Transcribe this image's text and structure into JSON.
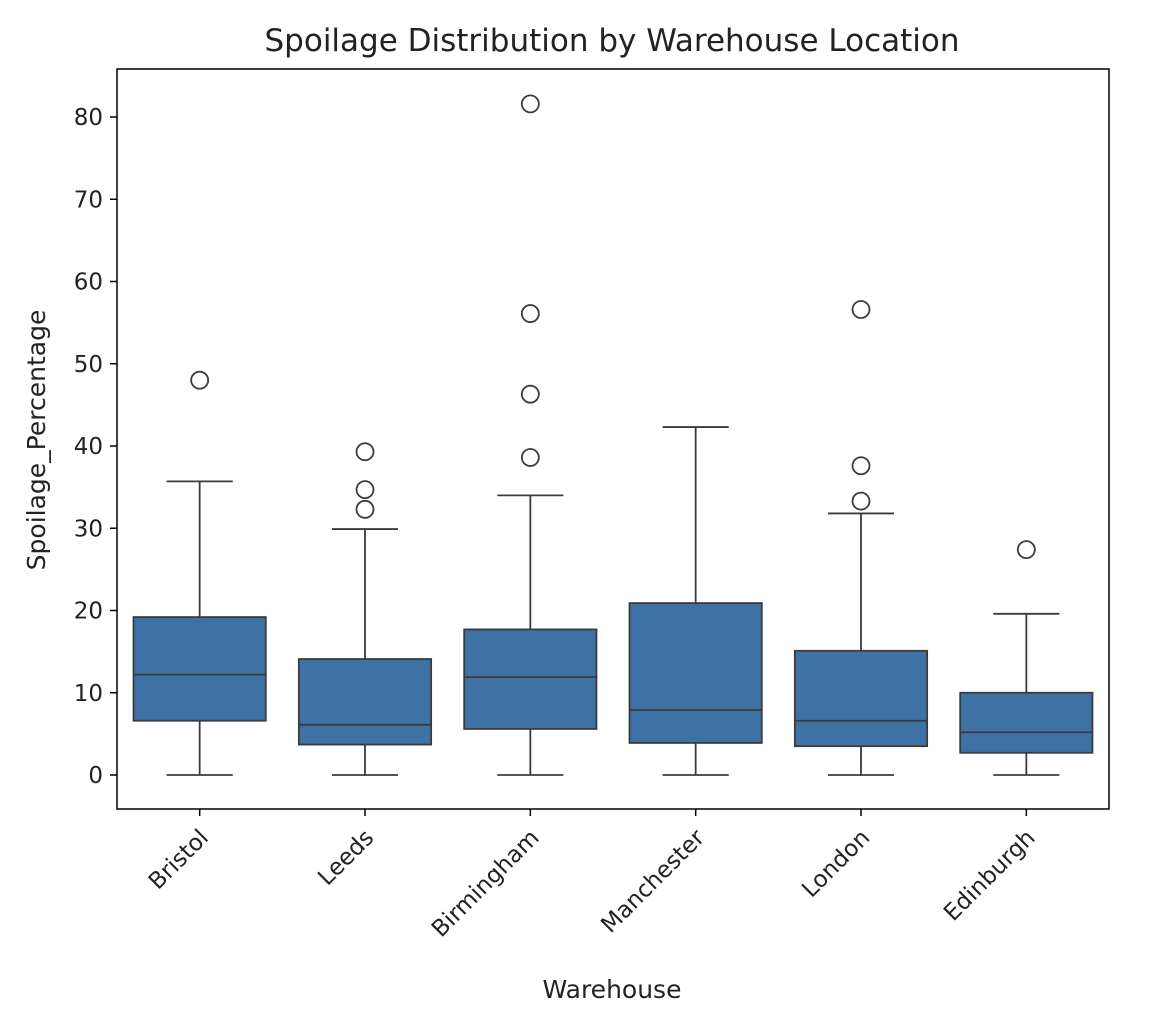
{
  "chart_data": {
    "type": "box",
    "title": "Spoilage Distribution by Warehouse Location",
    "xlabel": "Warehouse",
    "ylabel": "Spoilage_Percentage",
    "ylim": [
      -4,
      86
    ],
    "yticks": [
      0,
      10,
      20,
      30,
      40,
      50,
      60,
      70,
      80
    ],
    "grid": false,
    "legend": "none",
    "colors": {
      "box_fill": "#3e72a4",
      "line": "#3b3b3b",
      "frame": "#000000"
    },
    "categories": [
      "Bristol",
      "Leeds",
      "Birmingham",
      "Manchester",
      "London",
      "Edinburgh"
    ],
    "boxes": [
      {
        "category": "Bristol",
        "whisker_low": 0,
        "q1": 6.6,
        "median": 12.2,
        "q3": 19.2,
        "whisker_high": 35.7,
        "outliers": [
          48.0
        ]
      },
      {
        "category": "Leeds",
        "whisker_low": 0,
        "q1": 3.7,
        "median": 6.1,
        "q3": 14.1,
        "whisker_high": 29.9,
        "outliers": [
          32.3,
          34.7,
          39.3
        ]
      },
      {
        "category": "Birmingham",
        "whisker_low": 0,
        "q1": 5.6,
        "median": 11.9,
        "q3": 17.7,
        "whisker_high": 34.0,
        "outliers": [
          38.6,
          46.3,
          56.1,
          81.6
        ]
      },
      {
        "category": "Manchester",
        "whisker_low": 0,
        "q1": 3.9,
        "median": 7.9,
        "q3": 20.9,
        "whisker_high": 42.3,
        "outliers": []
      },
      {
        "category": "London",
        "whisker_low": 0,
        "q1": 3.5,
        "median": 6.6,
        "q3": 15.1,
        "whisker_high": 31.8,
        "outliers": [
          33.3,
          37.6,
          56.6
        ]
      },
      {
        "category": "Edinburgh",
        "whisker_low": 0,
        "q1": 2.7,
        "median": 5.2,
        "q3": 10.0,
        "whisker_high": 19.6,
        "outliers": [
          27.4
        ]
      }
    ]
  }
}
